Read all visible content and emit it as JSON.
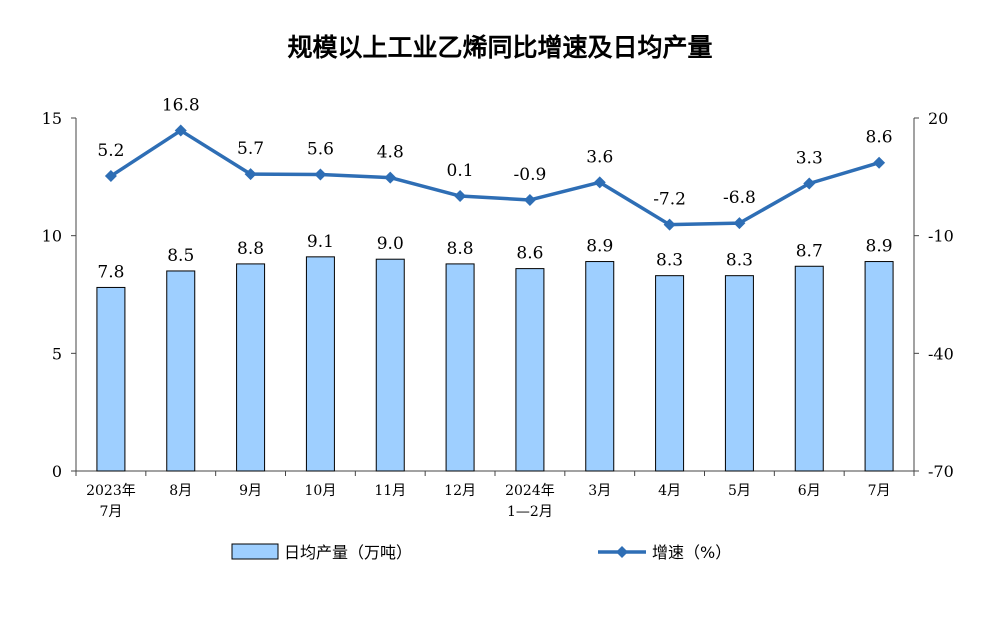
{
  "chart_data": {
    "type": "bar+line",
    "title": "规模以上工业乙烯同比增速及日均产量",
    "categories": [
      [
        "2023年",
        "7月"
      ],
      [
        "8月"
      ],
      [
        "9月"
      ],
      [
        "10月"
      ],
      [
        "11月"
      ],
      [
        "12月"
      ],
      [
        "2024年",
        "1—2月"
      ],
      [
        "3月"
      ],
      [
        "4月"
      ],
      [
        "5月"
      ],
      [
        "6月"
      ],
      [
        "7月"
      ]
    ],
    "series": [
      {
        "name": "日均产量（万吨）",
        "type": "bar",
        "axis": "left",
        "color": "#9ecfff",
        "values": [
          7.8,
          8.5,
          8.8,
          9.1,
          9.0,
          8.8,
          8.6,
          8.9,
          8.3,
          8.3,
          8.7,
          8.9
        ],
        "labels": [
          "7.8",
          "8.5",
          "8.8",
          "9.1",
          "9.0",
          "8.8",
          "8.6",
          "8.9",
          "8.3",
          "8.3",
          "8.7",
          "8.9"
        ]
      },
      {
        "name": "增速（%）",
        "type": "line",
        "axis": "right",
        "color": "#2e6eb5",
        "values": [
          5.2,
          16.8,
          5.7,
          5.6,
          4.8,
          0.1,
          -0.9,
          3.6,
          -7.2,
          -6.8,
          3.3,
          8.6
        ],
        "labels": [
          "5.2",
          "16.8",
          "5.7",
          "5.6",
          "4.8",
          "0.1",
          "-0.9",
          "3.6",
          "-7.2",
          "-6.8",
          "3.3",
          "8.6"
        ]
      }
    ],
    "y_left": {
      "min": 0,
      "max": 15,
      "ticks": [
        "0",
        "5",
        "10",
        "15"
      ]
    },
    "y_right": {
      "min": -70,
      "max": 20,
      "ticks": [
        "-70",
        "-40",
        "-10",
        "20"
      ]
    },
    "grid": false,
    "legend_position": "bottom"
  }
}
